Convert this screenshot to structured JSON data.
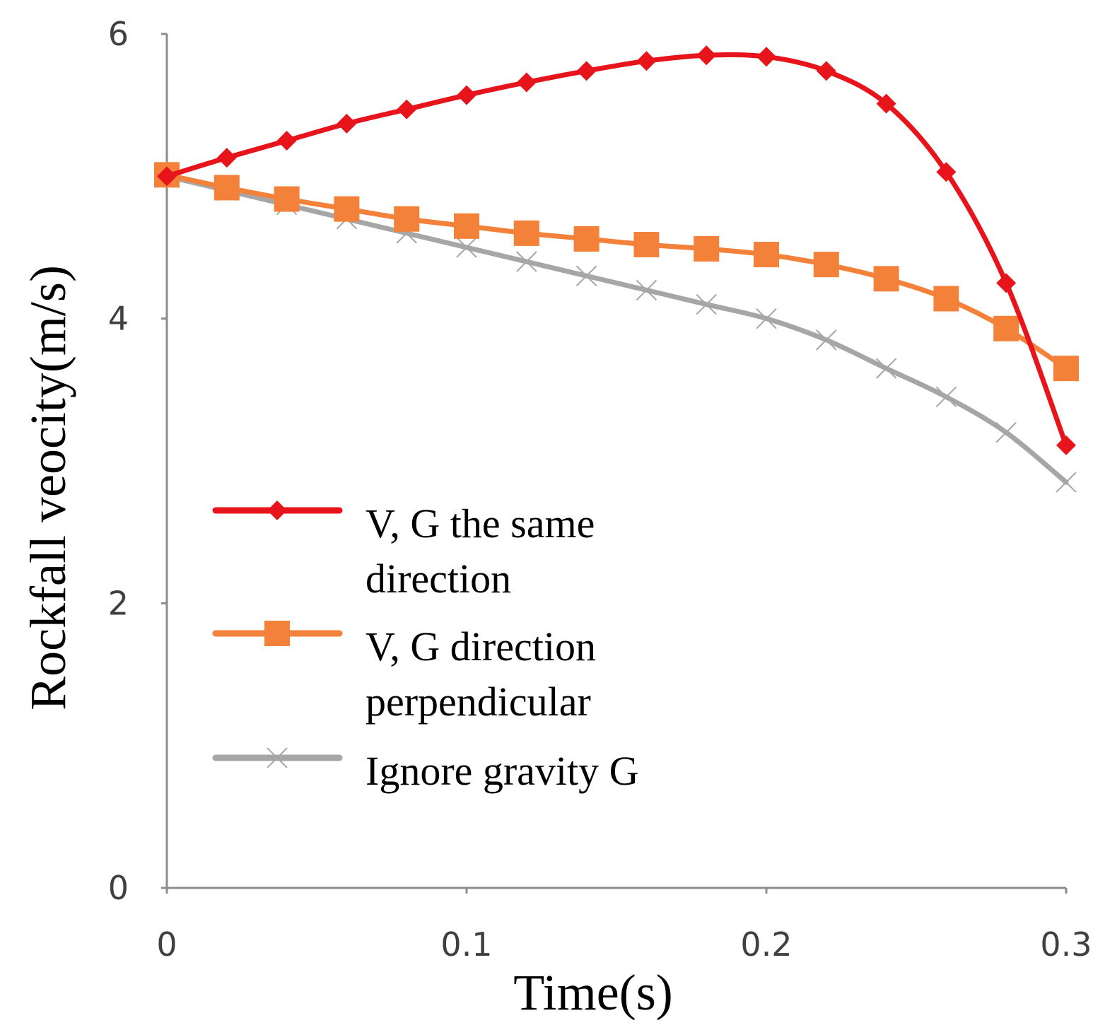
{
  "chart_data": {
    "type": "line",
    "title": "",
    "xlabel": "Time(s)",
    "ylabel": "Rockfall veocity(m/s)",
    "xlim": [
      0,
      0.3
    ],
    "ylim": [
      0,
      6
    ],
    "x_ticks": [
      "0",
      "0.1",
      "0.2",
      "0.3"
    ],
    "y_ticks": [
      "0",
      "2",
      "4",
      "6"
    ],
    "grid": false,
    "legend_position": "left-center",
    "x": [
      0,
      0.02,
      0.04,
      0.06,
      0.08,
      0.1,
      0.12,
      0.14,
      0.16,
      0.18,
      0.2,
      0.22,
      0.24,
      0.26,
      0.28,
      0.3
    ],
    "series": [
      {
        "name": "V, G the same direction",
        "legend_lines": [
          "V, G the same",
          "direction"
        ],
        "color": "#e8141c",
        "marker": "diamond",
        "values": [
          5.0,
          5.13,
          5.25,
          5.37,
          5.47,
          5.57,
          5.66,
          5.74,
          5.81,
          5.85,
          5.84,
          5.74,
          5.51,
          5.03,
          4.25,
          3.11
        ]
      },
      {
        "name": "V, G direction perpendicular",
        "legend_lines": [
          "V, G direction",
          "perpendicular"
        ],
        "color": "#f4813a",
        "marker": "square",
        "values": [
          5.01,
          4.92,
          4.84,
          4.77,
          4.7,
          4.65,
          4.6,
          4.56,
          4.52,
          4.49,
          4.45,
          4.38,
          4.28,
          4.14,
          3.93,
          3.65
        ]
      },
      {
        "name": "Ignore gravity G",
        "legend_lines": [
          "Ignore gravity G"
        ],
        "color": "#a6a6a6",
        "marker": "x",
        "values": [
          5.0,
          4.9,
          4.8,
          4.7,
          4.6,
          4.5,
          4.4,
          4.3,
          4.2,
          4.1,
          4.0,
          3.85,
          3.65,
          3.45,
          3.2,
          2.85
        ]
      }
    ]
  }
}
